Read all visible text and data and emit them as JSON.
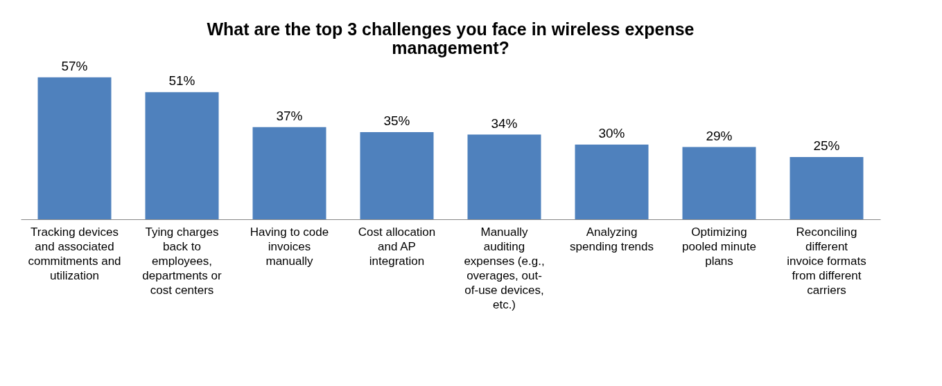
{
  "chart_data": {
    "type": "bar",
    "title": "What are the top 3 challenges you face in wireless expense management?",
    "categories": [
      "Tracking devices and associated commitments and utilization",
      "Tying charges back to employees, departments or cost centers",
      "Having to code invoices manually",
      "Cost allocation and AP integration",
      "Manually auditing expenses (e.g., overages, out-of-use devices, etc.)",
      "Analyzing spending trends",
      "Optimizing pooled minute plans",
      "Reconciling different invoice formats from different carriers"
    ],
    "values": [
      57,
      51,
      37,
      35,
      34,
      30,
      29,
      25
    ],
    "value_labels": [
      "57%",
      "51%",
      "37%",
      "35%",
      "34%",
      "30%",
      "29%",
      "25%"
    ],
    "color": "#4f81bd",
    "grid": false
  }
}
